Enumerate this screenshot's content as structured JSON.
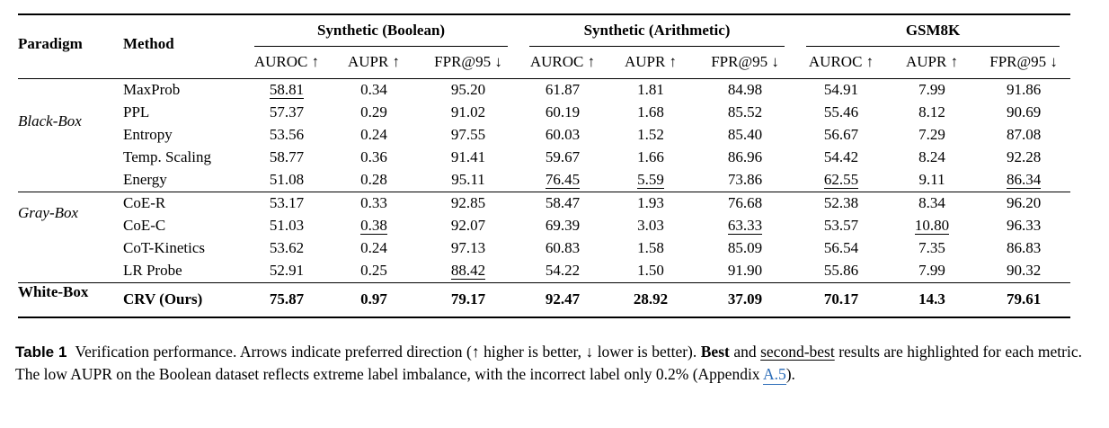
{
  "colors": {
    "text": "#000000",
    "link": "#2b6cb8",
    "background": "#ffffff"
  },
  "table": {
    "headers": {
      "paradigm": "Paradigm",
      "method": "Method"
    },
    "groups": [
      {
        "label": "Synthetic (Boolean)",
        "metrics": [
          "AUROC ↑",
          "AUPR ↑",
          "FPR@95 ↓"
        ]
      },
      {
        "label": "Synthetic (Arithmetic)",
        "metrics": [
          "AUROC ↑",
          "AUPR ↑",
          "FPR@95 ↓"
        ]
      },
      {
        "label": "GSM8K",
        "metrics": [
          "AUROC ↑",
          "AUPR ↑",
          "FPR@95 ↓"
        ]
      }
    ],
    "sections": [
      {
        "paradigm": "Black-Box",
        "paradigm_style": "italic",
        "rows": [
          {
            "method": "MaxProb",
            "values": [
              "58.81",
              "0.34",
              "95.20",
              "61.87",
              "1.81",
              "84.98",
              "54.91",
              "7.99",
              "91.86"
            ],
            "marks": [
              "u",
              "",
              "",
              "",
              "",
              "",
              "",
              "",
              ""
            ]
          },
          {
            "method": "PPL",
            "values": [
              "57.37",
              "0.29",
              "91.02",
              "60.19",
              "1.68",
              "85.52",
              "55.46",
              "8.12",
              "90.69"
            ],
            "marks": [
              "",
              "",
              "",
              "",
              "",
              "",
              "",
              "",
              ""
            ]
          },
          {
            "method": "Entropy",
            "values": [
              "53.56",
              "0.24",
              "97.55",
              "60.03",
              "1.52",
              "85.40",
              "56.67",
              "7.29",
              "87.08"
            ],
            "marks": [
              "",
              "",
              "",
              "",
              "",
              "",
              "",
              "",
              ""
            ]
          },
          {
            "method": "Temp. Scaling",
            "values": [
              "58.77",
              "0.36",
              "91.41",
              "59.67",
              "1.66",
              "86.96",
              "54.42",
              "8.24",
              "92.28"
            ],
            "marks": [
              "",
              "",
              "",
              "",
              "",
              "",
              "",
              "",
              ""
            ]
          },
          {
            "method": "Energy",
            "values": [
              "51.08",
              "0.28",
              "95.11",
              "76.45",
              "5.59",
              "73.86",
              "62.55",
              "9.11",
              "86.34"
            ],
            "marks": [
              "",
              "",
              "",
              "u",
              "u",
              "",
              "u",
              "",
              "u"
            ]
          }
        ]
      },
      {
        "paradigm": "Gray-Box",
        "paradigm_style": "italic",
        "rows": [
          {
            "method": "CoE-R",
            "values": [
              "53.17",
              "0.33",
              "92.85",
              "58.47",
              "1.93",
              "76.68",
              "52.38",
              "8.34",
              "96.20"
            ],
            "marks": [
              "",
              "",
              "",
              "",
              "",
              "",
              "",
              "",
              ""
            ]
          },
          {
            "method": "CoE-C",
            "values": [
              "51.03",
              "0.38",
              "92.07",
              "69.39",
              "3.03",
              "63.33",
              "53.57",
              "10.80",
              "96.33"
            ],
            "marks": [
              "",
              "u",
              "",
              "",
              "",
              "u",
              "",
              "u",
              ""
            ]
          },
          {
            "method": "CoT-Kinetics",
            "values": [
              "53.62",
              "0.24",
              "97.13",
              "60.83",
              "1.58",
              "85.09",
              "56.54",
              "7.35",
              "86.83"
            ],
            "marks": [
              "",
              "",
              "",
              "",
              "",
              "",
              "",
              "",
              ""
            ]
          },
          {
            "method": "LR Probe",
            "values": [
              "52.91",
              "0.25",
              "88.42",
              "54.22",
              "1.50",
              "91.90",
              "55.86",
              "7.99",
              "90.32"
            ],
            "marks": [
              "",
              "",
              "u",
              "",
              "",
              "",
              "",
              "",
              ""
            ]
          }
        ]
      },
      {
        "paradigm": "White-Box",
        "paradigm_style": "bold",
        "bold_row": true,
        "rows": [
          {
            "method": "CRV (Ours)",
            "values": [
              "75.87",
              "0.97",
              "79.17",
              "92.47",
              "28.92",
              "37.09",
              "70.17",
              "14.3",
              "79.61"
            ],
            "marks": [
              "",
              "",
              "",
              "",
              "",
              "",
              "",
              "",
              ""
            ]
          }
        ]
      }
    ]
  },
  "caption": {
    "segments": [
      {
        "style": "label",
        "text": "Table 1"
      },
      {
        "style": "plain",
        "text": "Verification performance. Arrows indicate preferred direction (↑ higher is better, ↓ lower is better). "
      },
      {
        "style": "bold",
        "text": "Best"
      },
      {
        "style": "plain",
        "text": " and "
      },
      {
        "style": "underline",
        "text": "second-best"
      },
      {
        "style": "plain",
        "text": " results are highlighted for each metric. The low AUPR on the Boolean dataset reflects extreme label imbalance, with the incorrect label only 0.2% (Appendix "
      },
      {
        "style": "link",
        "text": "A.5"
      },
      {
        "style": "plain",
        "text": ")."
      }
    ]
  }
}
